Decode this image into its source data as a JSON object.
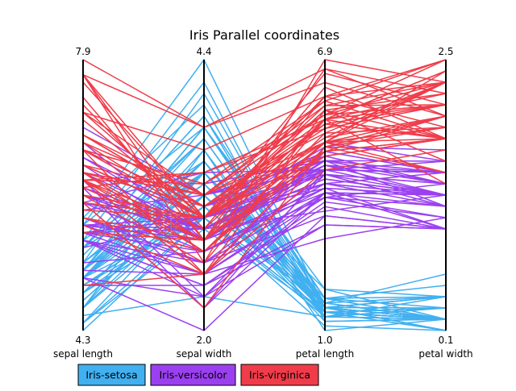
{
  "chart_data": {
    "type": "parallel_coordinates",
    "title": "Iris Parallel coordinates",
    "axes": [
      {
        "name": "sepal length",
        "min": 4.3,
        "max": 7.9,
        "min_label": "4.3",
        "max_label": "7.9"
      },
      {
        "name": "sepal width",
        "min": 2.0,
        "max": 4.4,
        "min_label": "2.0",
        "max_label": "4.4"
      },
      {
        "name": "petal length",
        "min": 1.0,
        "max": 6.9,
        "min_label": "1.0",
        "max_label": "6.9"
      },
      {
        "name": "petal width",
        "min": 0.1,
        "max": 2.5,
        "min_label": "0.1",
        "max_label": "2.5"
      }
    ],
    "series": [
      {
        "name": "Iris-setosa",
        "color": "#41b0f0",
        "values": [
          [
            5.1,
            3.5,
            1.4,
            0.2
          ],
          [
            4.9,
            3.0,
            1.4,
            0.2
          ],
          [
            4.7,
            3.2,
            1.3,
            0.2
          ],
          [
            4.6,
            3.1,
            1.5,
            0.2
          ],
          [
            5.0,
            3.6,
            1.4,
            0.2
          ],
          [
            5.4,
            3.9,
            1.7,
            0.4
          ],
          [
            4.6,
            3.4,
            1.4,
            0.3
          ],
          [
            5.0,
            3.4,
            1.5,
            0.2
          ],
          [
            4.4,
            2.9,
            1.4,
            0.2
          ],
          [
            4.9,
            3.1,
            1.5,
            0.1
          ],
          [
            5.4,
            3.7,
            1.5,
            0.2
          ],
          [
            4.8,
            3.4,
            1.6,
            0.2
          ],
          [
            4.8,
            3.0,
            1.4,
            0.1
          ],
          [
            4.3,
            3.0,
            1.1,
            0.1
          ],
          [
            5.8,
            4.0,
            1.2,
            0.2
          ],
          [
            5.7,
            4.4,
            1.5,
            0.4
          ],
          [
            5.4,
            3.9,
            1.3,
            0.4
          ],
          [
            5.1,
            3.5,
            1.4,
            0.3
          ],
          [
            5.7,
            3.8,
            1.7,
            0.3
          ],
          [
            5.1,
            3.8,
            1.5,
            0.3
          ],
          [
            5.4,
            3.4,
            1.7,
            0.2
          ],
          [
            5.1,
            3.7,
            1.5,
            0.4
          ],
          [
            4.6,
            3.6,
            1.0,
            0.2
          ],
          [
            5.1,
            3.3,
            1.7,
            0.5
          ],
          [
            4.8,
            3.4,
            1.9,
            0.2
          ],
          [
            5.0,
            3.0,
            1.6,
            0.2
          ],
          [
            5.0,
            3.4,
            1.6,
            0.4
          ],
          [
            5.2,
            3.5,
            1.5,
            0.2
          ],
          [
            5.2,
            3.4,
            1.4,
            0.2
          ],
          [
            4.7,
            3.2,
            1.6,
            0.2
          ],
          [
            4.8,
            3.1,
            1.6,
            0.2
          ],
          [
            5.4,
            3.4,
            1.5,
            0.4
          ],
          [
            5.2,
            4.1,
            1.5,
            0.1
          ],
          [
            5.5,
            4.2,
            1.4,
            0.2
          ],
          [
            4.9,
            3.1,
            1.5,
            0.1
          ],
          [
            5.0,
            3.2,
            1.2,
            0.2
          ],
          [
            5.5,
            3.5,
            1.3,
            0.2
          ],
          [
            4.9,
            3.1,
            1.5,
            0.1
          ],
          [
            4.4,
            3.0,
            1.3,
            0.2
          ],
          [
            5.1,
            3.4,
            1.5,
            0.2
          ],
          [
            5.0,
            3.5,
            1.3,
            0.3
          ],
          [
            4.5,
            2.3,
            1.3,
            0.3
          ],
          [
            4.4,
            3.2,
            1.3,
            0.2
          ],
          [
            5.0,
            3.5,
            1.6,
            0.6
          ],
          [
            5.1,
            3.8,
            1.9,
            0.4
          ],
          [
            4.8,
            3.0,
            1.4,
            0.3
          ],
          [
            5.1,
            3.8,
            1.6,
            0.2
          ],
          [
            4.6,
            3.2,
            1.4,
            0.2
          ],
          [
            5.3,
            3.7,
            1.5,
            0.2
          ],
          [
            5.0,
            3.3,
            1.4,
            0.2
          ]
        ]
      },
      {
        "name": "Iris-versicolor",
        "color": "#9b40f0",
        "values": [
          [
            7.0,
            3.2,
            4.7,
            1.4
          ],
          [
            6.4,
            3.2,
            4.5,
            1.5
          ],
          [
            6.9,
            3.1,
            4.9,
            1.5
          ],
          [
            5.5,
            2.3,
            4.0,
            1.3
          ],
          [
            6.5,
            2.8,
            4.6,
            1.5
          ],
          [
            5.7,
            2.8,
            4.5,
            1.3
          ],
          [
            6.3,
            3.3,
            4.7,
            1.6
          ],
          [
            4.9,
            2.4,
            3.3,
            1.0
          ],
          [
            6.6,
            2.9,
            4.6,
            1.3
          ],
          [
            5.2,
            2.7,
            3.9,
            1.4
          ],
          [
            5.0,
            2.0,
            3.5,
            1.0
          ],
          [
            5.9,
            3.0,
            4.2,
            1.5
          ],
          [
            6.0,
            2.2,
            4.0,
            1.0
          ],
          [
            6.1,
            2.9,
            4.7,
            1.4
          ],
          [
            5.6,
            2.9,
            3.6,
            1.3
          ],
          [
            6.7,
            3.1,
            4.4,
            1.4
          ],
          [
            5.6,
            3.0,
            4.5,
            1.5
          ],
          [
            5.8,
            2.7,
            4.1,
            1.0
          ],
          [
            6.2,
            2.2,
            4.5,
            1.5
          ],
          [
            5.6,
            2.5,
            3.9,
            1.1
          ],
          [
            5.9,
            3.2,
            4.8,
            1.8
          ],
          [
            6.1,
            2.8,
            4.0,
            1.3
          ],
          [
            6.3,
            2.5,
            4.9,
            1.5
          ],
          [
            6.1,
            2.8,
            4.7,
            1.2
          ],
          [
            6.4,
            2.9,
            4.3,
            1.3
          ],
          [
            6.6,
            3.0,
            4.4,
            1.4
          ],
          [
            6.8,
            2.8,
            4.8,
            1.4
          ],
          [
            6.7,
            3.0,
            5.0,
            1.7
          ],
          [
            6.0,
            2.9,
            4.5,
            1.5
          ],
          [
            5.7,
            2.6,
            3.5,
            1.0
          ],
          [
            5.5,
            2.4,
            3.8,
            1.1
          ],
          [
            5.5,
            2.4,
            3.7,
            1.0
          ],
          [
            5.8,
            2.7,
            3.9,
            1.2
          ],
          [
            6.0,
            2.7,
            5.1,
            1.6
          ],
          [
            5.4,
            3.0,
            4.5,
            1.5
          ],
          [
            6.0,
            3.4,
            4.5,
            1.6
          ],
          [
            6.7,
            3.1,
            4.7,
            1.5
          ],
          [
            6.3,
            2.3,
            4.4,
            1.3
          ],
          [
            5.6,
            3.0,
            4.1,
            1.3
          ],
          [
            5.5,
            2.5,
            4.0,
            1.3
          ],
          [
            5.5,
            2.6,
            4.4,
            1.2
          ],
          [
            6.1,
            3.0,
            4.6,
            1.4
          ],
          [
            5.8,
            2.6,
            4.0,
            1.2
          ],
          [
            5.0,
            2.3,
            3.3,
            1.0
          ],
          [
            5.6,
            2.7,
            4.2,
            1.3
          ],
          [
            5.7,
            3.0,
            4.2,
            1.2
          ],
          [
            5.7,
            2.9,
            4.2,
            1.3
          ],
          [
            6.2,
            2.9,
            4.3,
            1.3
          ],
          [
            5.1,
            2.5,
            3.0,
            1.1
          ],
          [
            5.7,
            2.8,
            4.1,
            1.3
          ]
        ]
      },
      {
        "name": "Iris-virginica",
        "color": "#f03c4a",
        "values": [
          [
            6.3,
            3.3,
            6.0,
            2.5
          ],
          [
            5.8,
            2.7,
            5.1,
            1.9
          ],
          [
            7.1,
            3.0,
            5.9,
            2.1
          ],
          [
            6.3,
            2.9,
            5.6,
            1.8
          ],
          [
            6.5,
            3.0,
            5.8,
            2.2
          ],
          [
            7.6,
            3.0,
            6.6,
            2.1
          ],
          [
            4.9,
            2.5,
            4.5,
            1.7
          ],
          [
            7.3,
            2.9,
            6.3,
            1.8
          ],
          [
            6.7,
            2.5,
            5.8,
            1.8
          ],
          [
            7.2,
            3.6,
            6.1,
            2.5
          ],
          [
            6.5,
            3.2,
            5.1,
            2.0
          ],
          [
            6.4,
            2.7,
            5.3,
            1.9
          ],
          [
            6.8,
            3.0,
            5.5,
            2.1
          ],
          [
            5.7,
            2.5,
            5.0,
            2.0
          ],
          [
            5.8,
            2.8,
            5.1,
            2.4
          ],
          [
            6.4,
            3.2,
            5.3,
            2.3
          ],
          [
            6.5,
            3.0,
            5.5,
            1.8
          ],
          [
            7.7,
            3.8,
            6.7,
            2.2
          ],
          [
            7.7,
            2.6,
            6.9,
            2.3
          ],
          [
            6.0,
            2.2,
            5.0,
            1.5
          ],
          [
            6.9,
            3.2,
            5.7,
            2.3
          ],
          [
            5.6,
            2.8,
            4.9,
            2.0
          ],
          [
            7.7,
            2.8,
            6.7,
            2.0
          ],
          [
            6.3,
            2.7,
            4.9,
            1.8
          ],
          [
            6.7,
            3.3,
            5.7,
            2.1
          ],
          [
            7.2,
            3.2,
            6.0,
            1.8
          ],
          [
            6.2,
            2.8,
            4.8,
            1.8
          ],
          [
            6.1,
            3.0,
            4.9,
            1.8
          ],
          [
            6.4,
            2.8,
            5.6,
            2.1
          ],
          [
            7.2,
            3.0,
            5.8,
            1.6
          ],
          [
            7.4,
            2.8,
            6.1,
            1.9
          ],
          [
            7.9,
            3.8,
            6.4,
            2.0
          ],
          [
            6.4,
            2.8,
            5.6,
            2.2
          ],
          [
            6.3,
            2.8,
            5.1,
            1.5
          ],
          [
            6.1,
            2.6,
            5.6,
            1.4
          ],
          [
            7.7,
            3.0,
            6.1,
            2.3
          ],
          [
            6.3,
            3.4,
            5.6,
            2.4
          ],
          [
            6.4,
            3.1,
            5.5,
            1.8
          ],
          [
            6.0,
            3.0,
            4.8,
            1.8
          ],
          [
            6.9,
            3.1,
            5.4,
            2.1
          ],
          [
            6.7,
            3.1,
            5.6,
            2.4
          ],
          [
            6.9,
            3.1,
            5.1,
            2.3
          ],
          [
            5.8,
            2.7,
            5.1,
            1.9
          ],
          [
            6.8,
            3.2,
            5.9,
            2.3
          ],
          [
            6.7,
            3.3,
            5.7,
            2.5
          ],
          [
            6.7,
            3.0,
            5.2,
            2.3
          ],
          [
            6.3,
            2.5,
            5.0,
            1.9
          ],
          [
            6.5,
            3.0,
            5.2,
            2.0
          ],
          [
            6.2,
            3.4,
            5.4,
            2.3
          ],
          [
            5.9,
            3.0,
            5.1,
            1.8
          ]
        ]
      }
    ],
    "legend": {
      "placement": "bottom-left"
    },
    "grid": false
  }
}
